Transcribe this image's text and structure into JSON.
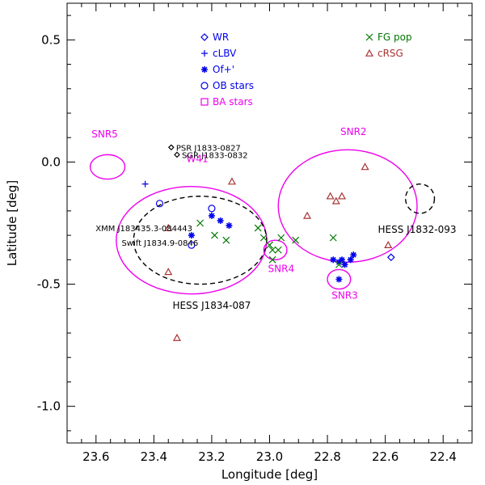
{
  "chart_data": {
    "type": "scatter",
    "title": "",
    "xlabel": "Longitude [deg]",
    "ylabel": "Latitude [deg]",
    "xlim": [
      23.7,
      22.3
    ],
    "ylim": [
      -1.15,
      0.65
    ],
    "x_reversed": true,
    "x_ticks": [
      23.6,
      23.4,
      23.2,
      23.0,
      22.8,
      22.6,
      22.4
    ],
    "x_tick_labels": [
      "23.6",
      "23.4",
      "23.2",
      "23.0",
      "22.8",
      "22.6",
      "22.4"
    ],
    "y_ticks": [
      0.5,
      0.0,
      -0.5,
      -1.0
    ],
    "y_tick_labels": [
      "0.5",
      "0.0",
      "-0.5",
      "-1.0"
    ],
    "grid": false,
    "legend_placement": "top",
    "legend": [
      {
        "name": "WR",
        "marker": "diamond",
        "color": "#0000ee"
      },
      {
        "name": "cLBV",
        "marker": "plus",
        "color": "#0000ee"
      },
      {
        "name": "Of+'",
        "marker": "asterisk",
        "color": "#0000ee"
      },
      {
        "name": "OB stars",
        "marker": "circle",
        "color": "#0000ee"
      },
      {
        "name": "BA stars",
        "marker": "square",
        "color": "#ee00ee"
      },
      {
        "name": "FG pop",
        "marker": "x",
        "color": "#007700"
      },
      {
        "name": "cRSG",
        "marker": "triangle",
        "color": "#aa3333"
      }
    ],
    "series": [
      {
        "name": "WR",
        "marker": "diamond",
        "color": "#0000ee",
        "points": [
          [
            22.58,
            -0.39
          ]
        ]
      },
      {
        "name": "cLBV",
        "marker": "plus",
        "color": "#0000ee",
        "points": [
          [
            23.43,
            -0.09
          ]
        ]
      },
      {
        "name": "Of+'",
        "marker": "asterisk",
        "color": "#0000ee",
        "points": [
          [
            23.27,
            -0.3
          ],
          [
            23.2,
            -0.22
          ],
          [
            23.17,
            -0.24
          ],
          [
            23.14,
            -0.26
          ],
          [
            22.78,
            -0.4
          ],
          [
            22.76,
            -0.41
          ],
          [
            22.75,
            -0.4
          ],
          [
            22.74,
            -0.42
          ],
          [
            22.72,
            -0.4
          ],
          [
            22.71,
            -0.38
          ],
          [
            22.76,
            -0.48
          ]
        ]
      },
      {
        "name": "OB stars",
        "marker": "circle",
        "color": "#0000ee",
        "points": [
          [
            23.38,
            -0.17
          ],
          [
            23.2,
            -0.19
          ],
          [
            23.27,
            -0.34
          ]
        ]
      },
      {
        "name": "BA stars",
        "marker": "square",
        "color": "#ee00ee",
        "points": []
      },
      {
        "name": "FG pop",
        "marker": "x",
        "color": "#007700",
        "points": [
          [
            23.24,
            -0.25
          ],
          [
            23.19,
            -0.3
          ],
          [
            23.15,
            -0.32
          ],
          [
            23.04,
            -0.27
          ],
          [
            23.02,
            -0.31
          ],
          [
            23.0,
            -0.34
          ],
          [
            22.99,
            -0.36
          ],
          [
            22.97,
            -0.36
          ],
          [
            22.96,
            -0.31
          ],
          [
            22.91,
            -0.32
          ],
          [
            22.99,
            -0.4
          ],
          [
            22.78,
            -0.31
          ],
          [
            22.76,
            -0.42
          ]
        ]
      },
      {
        "name": "cRSG",
        "marker": "triangle",
        "color": "#aa3333",
        "points": [
          [
            23.35,
            -0.27
          ],
          [
            23.35,
            -0.45
          ],
          [
            23.32,
            -0.72
          ],
          [
            23.13,
            -0.08
          ],
          [
            22.87,
            -0.22
          ],
          [
            22.79,
            -0.14
          ],
          [
            22.77,
            -0.16
          ],
          [
            22.75,
            -0.14
          ],
          [
            22.67,
            -0.02
          ],
          [
            22.59,
            -0.34
          ]
        ]
      }
    ],
    "regions": [
      {
        "label": "SNR5",
        "style": "solid",
        "color": "#ee00ee",
        "cx": 23.56,
        "cy": -0.02,
        "rx": 0.06,
        "ry": 0.05,
        "label_at": [
          23.57,
          0.1
        ]
      },
      {
        "label": "W41",
        "style": "solid",
        "color": "#ee00ee",
        "cx": 23.27,
        "cy": -0.32,
        "rx": 0.26,
        "ry": 0.22,
        "label_at": [
          23.25,
          0.0
        ]
      },
      {
        "label": "HESS J1834-087",
        "style": "dashed",
        "color": "#000000",
        "cx": 23.24,
        "cy": -0.32,
        "rx": 0.23,
        "ry": 0.18,
        "label_at": [
          23.2,
          -0.6
        ]
      },
      {
        "label": "SNR4",
        "style": "solid",
        "color": "#ee00ee",
        "cx": 22.98,
        "cy": -0.36,
        "rx": 0.04,
        "ry": 0.04,
        "label_at": [
          22.96,
          -0.45
        ]
      },
      {
        "label": "SNR2",
        "style": "solid",
        "color": "#ee00ee",
        "cx": 22.73,
        "cy": -0.18,
        "rx": 0.24,
        "ry": 0.23,
        "label_at": [
          22.71,
          0.11
        ]
      },
      {
        "label": "SNR3",
        "style": "solid",
        "color": "#ee00ee",
        "cx": 22.76,
        "cy": -0.48,
        "rx": 0.04,
        "ry": 0.04,
        "label_at": [
          22.74,
          -0.56
        ]
      },
      {
        "label": "HESS J1832-093",
        "style": "dashed",
        "color": "#000000",
        "cx": 22.48,
        "cy": -0.15,
        "rx": 0.05,
        "ry": 0.06,
        "label_at": [
          22.49,
          -0.29
        ]
      }
    ],
    "sources": [
      {
        "label": "PSR J1833-0827",
        "marker": "diamond",
        "color": "#000000",
        "x": 23.34,
        "y": 0.06
      },
      {
        "label": "SGR J1833-0832",
        "marker": "diamond",
        "color": "#000000",
        "x": 23.32,
        "y": 0.03
      },
      {
        "label": "XMM J183435.3-084443",
        "marker": "none",
        "color": "#000000",
        "x": 23.25,
        "y": -0.27
      },
      {
        "label": "Swift J1834.9-0846",
        "marker": "none",
        "color": "#000000",
        "x": 23.23,
        "y": -0.33
      }
    ]
  }
}
